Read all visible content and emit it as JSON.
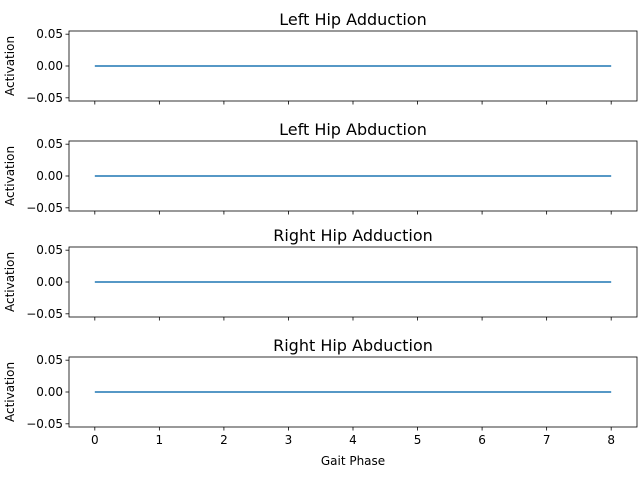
{
  "chart_data": [
    {
      "type": "line",
      "title": "Left Hip Adduction",
      "xlabel": "",
      "ylabel": "Activation",
      "ylim": [
        -0.055,
        0.055
      ],
      "yticks": [
        "0.05",
        "0.00",
        "−0.05"
      ],
      "xticks": [
        "0",
        "1",
        "2",
        "3",
        "4",
        "5",
        "6",
        "7",
        "8"
      ],
      "show_xtick_labels": false,
      "series": [
        {
          "x": [
            0,
            1,
            2,
            3,
            4,
            5,
            6,
            7,
            8
          ],
          "values": [
            0,
            0,
            0,
            0,
            0,
            0,
            0,
            0,
            0
          ],
          "color": "#1f77b4"
        }
      ]
    },
    {
      "type": "line",
      "title": "Left Hip Abduction",
      "xlabel": "",
      "ylabel": "Activation",
      "ylim": [
        -0.055,
        0.055
      ],
      "yticks": [
        "0.05",
        "0.00",
        "−0.05"
      ],
      "xticks": [
        "0",
        "1",
        "2",
        "3",
        "4",
        "5",
        "6",
        "7",
        "8"
      ],
      "show_xtick_labels": false,
      "series": [
        {
          "x": [
            0,
            1,
            2,
            3,
            4,
            5,
            6,
            7,
            8
          ],
          "values": [
            0,
            0,
            0,
            0,
            0,
            0,
            0,
            0,
            0
          ],
          "color": "#1f77b4"
        }
      ]
    },
    {
      "type": "line",
      "title": "Right Hip Adduction",
      "xlabel": "",
      "ylabel": "Activation",
      "ylim": [
        -0.055,
        0.055
      ],
      "yticks": [
        "0.05",
        "0.00",
        "−0.05"
      ],
      "xticks": [
        "0",
        "1",
        "2",
        "3",
        "4",
        "5",
        "6",
        "7",
        "8"
      ],
      "show_xtick_labels": false,
      "series": [
        {
          "x": [
            0,
            1,
            2,
            3,
            4,
            5,
            6,
            7,
            8
          ],
          "values": [
            0,
            0,
            0,
            0,
            0,
            0,
            0,
            0,
            0
          ],
          "color": "#1f77b4"
        }
      ]
    },
    {
      "type": "line",
      "title": "Right Hip Abduction",
      "xlabel": "Gait Phase",
      "ylabel": "Activation",
      "ylim": [
        -0.055,
        0.055
      ],
      "yticks": [
        "0.05",
        "0.00",
        "−0.05"
      ],
      "xticks": [
        "0",
        "1",
        "2",
        "3",
        "4",
        "5",
        "6",
        "7",
        "8"
      ],
      "show_xtick_labels": true,
      "series": [
        {
          "x": [
            0,
            1,
            2,
            3,
            4,
            5,
            6,
            7,
            8
          ],
          "values": [
            0,
            0,
            0,
            0,
            0,
            0,
            0,
            0,
            0
          ],
          "color": "#1f77b4"
        }
      ]
    }
  ]
}
